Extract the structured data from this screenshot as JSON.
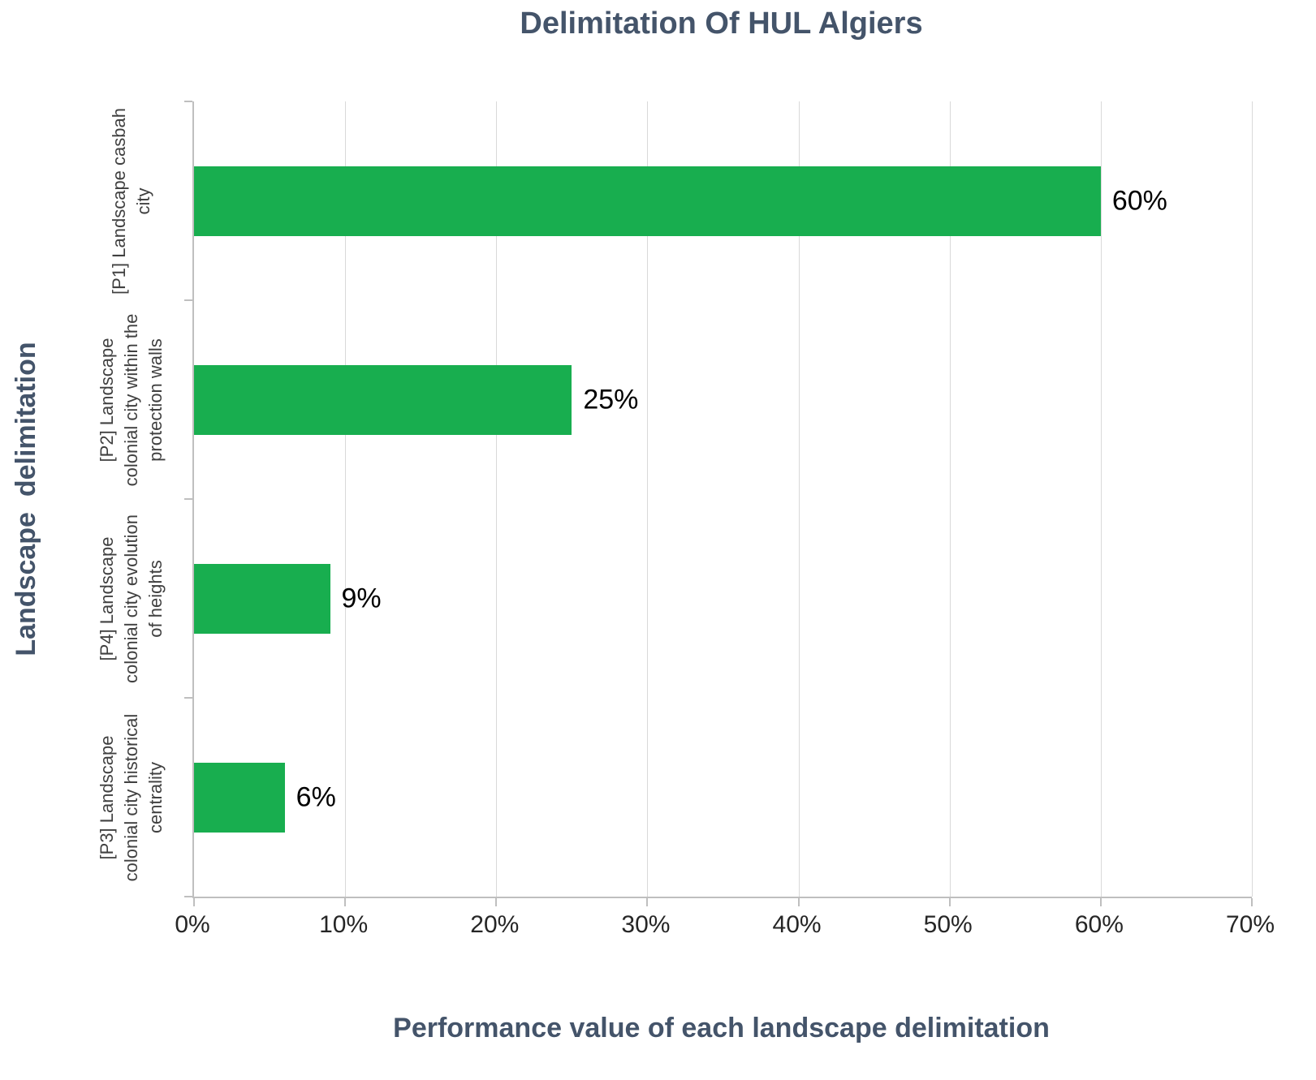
{
  "chart_data": {
    "type": "bar",
    "orientation": "horizontal",
    "title": "Delimitation Of HUL Algiers",
    "xlabel": "Performance value of each landscape delimitation",
    "ylabel": "Landscape  delimitation",
    "categories": [
      "[P1] Landscape casbah\ncity",
      "[P2] Landscape\ncolonial city within the\nprotection walls",
      "[P4] Landscape\ncolonial city evolution\nof heights",
      "[P3] Landscape\ncolonial city historical\ncentrality"
    ],
    "values": [
      60,
      25,
      9,
      6
    ],
    "value_labels": [
      "60%",
      "25%",
      "9%",
      "6%"
    ],
    "xlim": [
      0,
      70
    ],
    "xticks": [
      {
        "label": "0%",
        "v": 0
      },
      {
        "label": "10%",
        "v": 10
      },
      {
        "label": "20%",
        "v": 20
      },
      {
        "label": "30%",
        "v": 30
      },
      {
        "label": "40%",
        "v": 40
      },
      {
        "label": "50%",
        "v": 50
      },
      {
        "label": "60%",
        "v": 60
      },
      {
        "label": "70%",
        "v": 70
      }
    ],
    "grid": true,
    "legend": false,
    "bar_color": "#18AE4F",
    "axis_color": "#BFBFBF",
    "gridline_color": "#D9D9D9",
    "title_color": "#44546A"
  }
}
